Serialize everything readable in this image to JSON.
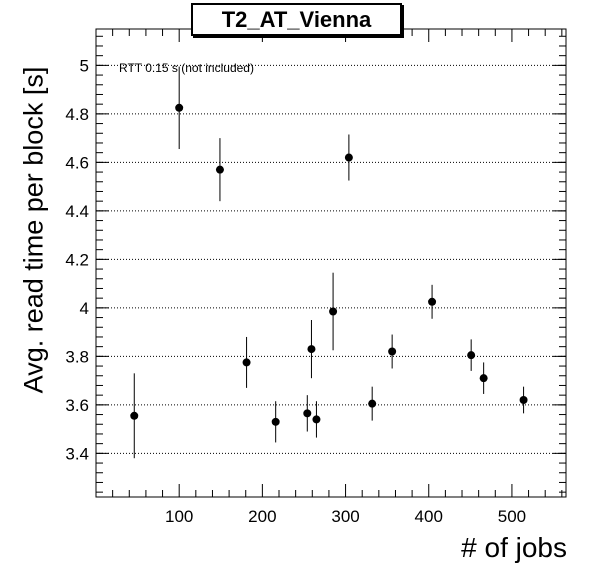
{
  "chart_data": {
    "type": "scatter",
    "title": "T2_AT_Vienna",
    "xlabel": "# of jobs",
    "ylabel": "Avg. read time per block [s]",
    "annotation": "RTT 0.15 s (not included)",
    "xlim": [
      0,
      565
    ],
    "ylim": [
      3.22,
      5.15
    ],
    "xticks": [
      100,
      200,
      300,
      400,
      500
    ],
    "yticks": [
      3.4,
      3.6,
      3.8,
      4,
      4.2,
      4.4,
      4.6,
      4.8,
      5
    ],
    "ytick_labels": [
      "3.4",
      "3.6",
      "3.8",
      "4",
      "4.2",
      "4.4",
      "4.6",
      "4.8",
      "5"
    ],
    "grid": "horizontal dotted",
    "marker_color": "#000000",
    "series": [
      {
        "points": [
          {
            "x": 46,
            "y": 3.555,
            "err": 0.175
          },
          {
            "x": 100,
            "y": 4.825,
            "err": 0.17
          },
          {
            "x": 149,
            "y": 4.57,
            "err": 0.13
          },
          {
            "x": 181,
            "y": 3.775,
            "err": 0.105
          },
          {
            "x": 216,
            "y": 3.53,
            "err": 0.085
          },
          {
            "x": 254,
            "y": 3.565,
            "err": 0.075
          },
          {
            "x": 259,
            "y": 3.83,
            "err": 0.12
          },
          {
            "x": 265,
            "y": 3.54,
            "err": 0.075
          },
          {
            "x": 285,
            "y": 3.985,
            "err": 0.16
          },
          {
            "x": 304,
            "y": 4.62,
            "err": 0.095
          },
          {
            "x": 332,
            "y": 3.605,
            "err": 0.07
          },
          {
            "x": 356,
            "y": 3.82,
            "err": 0.07
          },
          {
            "x": 404,
            "y": 4.025,
            "err": 0.07
          },
          {
            "x": 451,
            "y": 3.805,
            "err": 0.065
          },
          {
            "x": 466,
            "y": 3.71,
            "err": 0.065
          },
          {
            "x": 514,
            "y": 3.62,
            "err": 0.055
          }
        ]
      }
    ]
  }
}
